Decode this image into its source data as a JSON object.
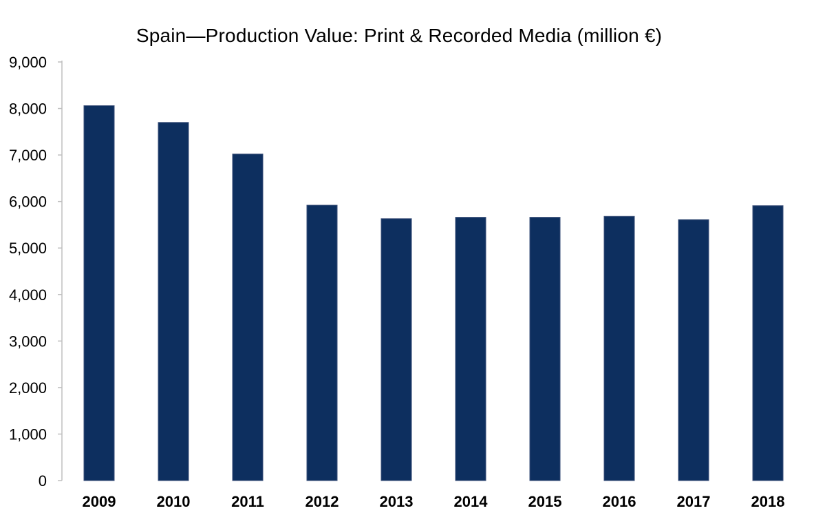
{
  "chart_data": {
    "type": "bar",
    "title": "Spain—Production Value: Print & Recorded Media (million €)",
    "xlabel": "",
    "ylabel": "",
    "categories": [
      "2009",
      "2010",
      "2011",
      "2012",
      "2013",
      "2014",
      "2015",
      "2016",
      "2017",
      "2018"
    ],
    "values": [
      8060,
      7700,
      7020,
      5920,
      5630,
      5660,
      5660,
      5680,
      5610,
      5910
    ],
    "ylim": [
      0,
      9000
    ],
    "yticks": [
      0,
      1000,
      2000,
      3000,
      4000,
      5000,
      6000,
      7000,
      8000,
      9000
    ],
    "ytick_labels": [
      "0",
      "1,000",
      "2,000",
      "3,000",
      "4,000",
      "5,000",
      "6,000",
      "7,000",
      "8,000",
      "9,000"
    ],
    "grid": false,
    "legend": "none",
    "colors": {
      "bar": "#0d2f5f",
      "axis": "#bfbfbf",
      "text": "#000000"
    }
  }
}
